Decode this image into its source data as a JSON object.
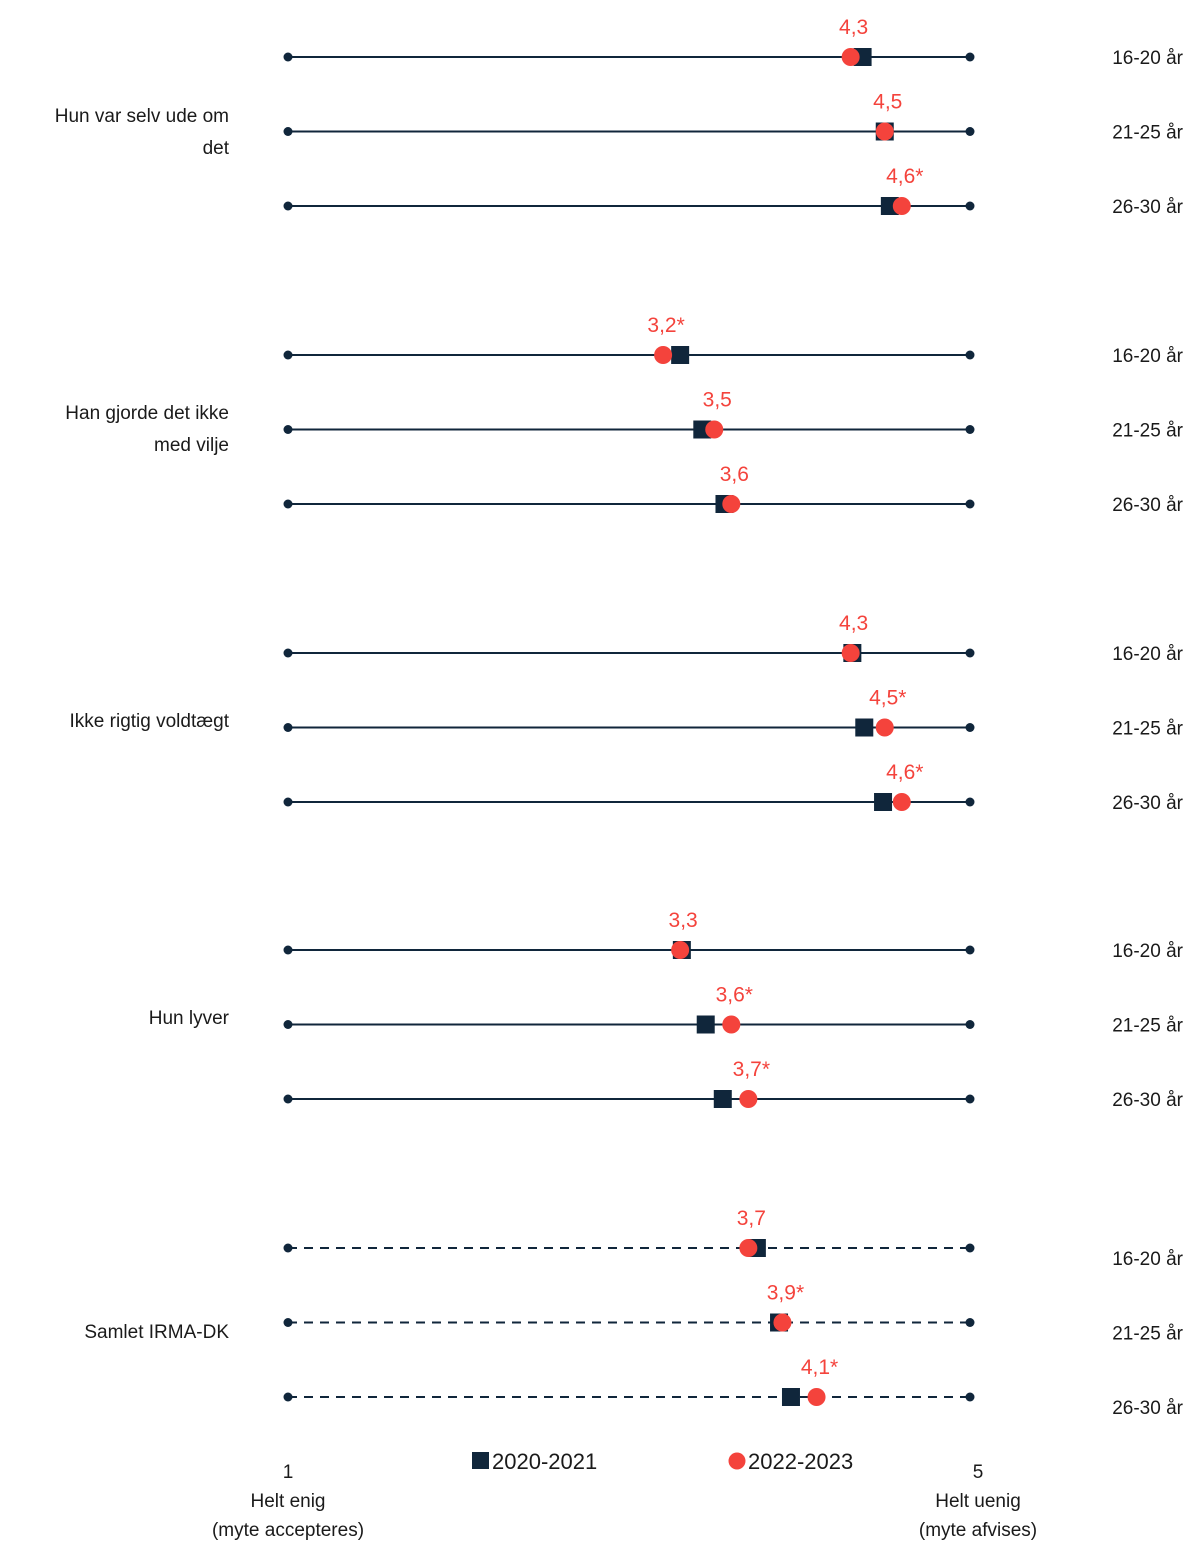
{
  "colors": {
    "navy": "#10263b",
    "red": "#f4433c"
  },
  "chart_data": {
    "type": "dot-plot",
    "xlim": [
      1,
      5
    ],
    "legend": {
      "placement": "bottom",
      "entries": [
        {
          "label": "2020-2021",
          "marker": "square",
          "color": "#10263b"
        },
        {
          "label": "2022-2023",
          "marker": "circle",
          "color": "#f4433c"
        }
      ]
    },
    "axis": {
      "min_label": "1",
      "min_text_1": "Helt enig",
      "min_text_2": "(myte accepteres)",
      "max_label": "5",
      "max_text_1": "Helt uenig",
      "max_text_2": "(myte afvises)"
    },
    "groups": [
      {
        "label_lines": [
          "Hun var selv ude om",
          "det"
        ],
        "line_style": "solid",
        "rows": [
          {
            "age": "16-20 år",
            "v2020": 4.37,
            "v2022": 4.3,
            "label": "4,3"
          },
          {
            "age": "21-25 år",
            "v2020": 4.5,
            "v2022": 4.5,
            "label": "4,5"
          },
          {
            "age": "26-30 år",
            "v2020": 4.53,
            "v2022": 4.6,
            "label": "4,6*"
          }
        ]
      },
      {
        "label_lines": [
          "Han gjorde det ikke",
          "med vilje"
        ],
        "line_style": "solid",
        "rows": [
          {
            "age": "16-20 år",
            "v2020": 3.3,
            "v2022": 3.2,
            "label": "3,2*"
          },
          {
            "age": "21-25 år",
            "v2020": 3.43,
            "v2022": 3.5,
            "label": "3,5"
          },
          {
            "age": "26-30 år",
            "v2020": 3.56,
            "v2022": 3.6,
            "label": "3,6"
          }
        ]
      },
      {
        "label_lines": [
          "Ikke rigtig voldtægt"
        ],
        "line_style": "solid",
        "rows": [
          {
            "age": "16-20 år",
            "v2020": 4.31,
            "v2022": 4.3,
            "label": "4,3"
          },
          {
            "age": "21-25 år",
            "v2020": 4.38,
            "v2022": 4.5,
            "label": "4,5*"
          },
          {
            "age": "26-30 år",
            "v2020": 4.49,
            "v2022": 4.6,
            "label": "4,6*"
          }
        ]
      },
      {
        "label_lines": [
          "Hun lyver"
        ],
        "line_style": "solid",
        "rows": [
          {
            "age": "16-20 år",
            "v2020": 3.31,
            "v2022": 3.3,
            "label": "3,3"
          },
          {
            "age": "21-25 år",
            "v2020": 3.45,
            "v2022": 3.6,
            "label": "3,6*"
          },
          {
            "age": "26-30 år",
            "v2020": 3.55,
            "v2022": 3.7,
            "label": "3,7*"
          }
        ]
      },
      {
        "label_lines": [
          "Samlet IRMA-DK"
        ],
        "line_style": "dashed",
        "rows": [
          {
            "age": "16-20 år",
            "v2020": 3.75,
            "v2022": 3.7,
            "label": "3,7"
          },
          {
            "age": "21-25 år",
            "v2020": 3.88,
            "v2022": 3.9,
            "label": "3,9*"
          },
          {
            "age": "26-30 år",
            "v2020": 3.95,
            "v2022": 4.1,
            "label": "4,1*"
          }
        ]
      }
    ]
  }
}
